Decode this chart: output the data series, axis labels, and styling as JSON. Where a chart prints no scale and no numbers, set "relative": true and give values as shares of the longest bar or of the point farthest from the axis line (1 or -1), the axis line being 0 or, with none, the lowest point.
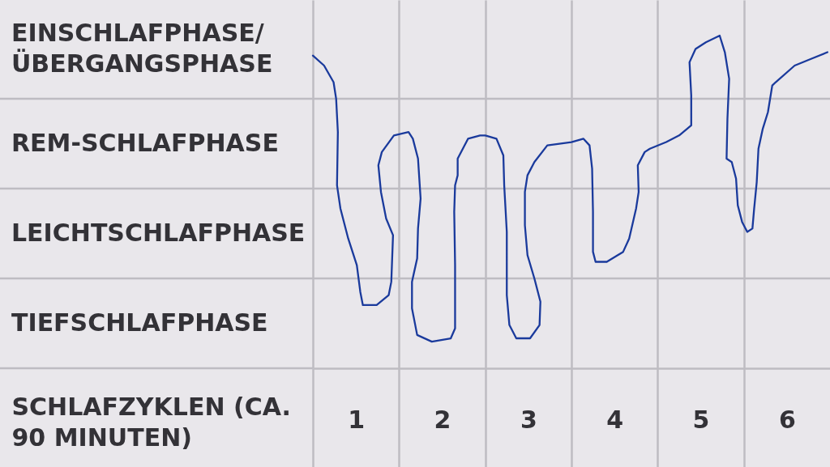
{
  "chart_data": {
    "type": "line",
    "relative": true,
    "xlabel": "SCHLAFZYKLEN (CA. 90 MINUTEN)",
    "color": "#1a3a9c",
    "line_style": "solid",
    "grid": "x",
    "xlim": [
      0,
      6
    ],
    "xticks": [
      {
        "value": 0,
        "label": null
      },
      {
        "value": 0.5,
        "label": "1"
      },
      {
        "value": 1,
        "label": null
      },
      {
        "value": 1.5,
        "label": "2"
      },
      {
        "value": 2,
        "label": null
      },
      {
        "value": 2.5,
        "label": "3"
      },
      {
        "value": 3,
        "label": null
      },
      {
        "value": 3.5,
        "label": "4"
      },
      {
        "value": 4,
        "label": null
      },
      {
        "value": 4.5,
        "label": "5"
      },
      {
        "value": 5,
        "label": null
      },
      {
        "value": 5.5,
        "label": "6"
      }
    ],
    "ref_lines": [
      {
        "axis": "y",
        "value": 0.27,
        "color": "#bebcc2"
      },
      {
        "axis": "y",
        "value": 0.54,
        "color": "#bebcc2"
      },
      {
        "axis": "y",
        "value": 0.81,
        "color": "#bebcc2"
      }
    ],
    "annotations": [
      "EINSCHLAFPHASE/ÜBERGANGSPHASE",
      "REM-SCHLAFPHASE",
      "LEICHTSCHLAFPHASE",
      "TIEFSCHLAFPHASE"
    ],
    "x": [
      0,
      0.13,
      0.24,
      0.27,
      0.29,
      0.28,
      0.32,
      0.41,
      0.51,
      0.55,
      0.58,
      0.74,
      0.88,
      0.91,
      0.93,
      0.85,
      0.79,
      0.76,
      0.8,
      0.94,
      1.11,
      1.16,
      1.22,
      1.25,
      1.22,
      1.21,
      1.15,
      1.15,
      1.21,
      1.38,
      1.6,
      1.65,
      1.65,
      1.64,
      1.65,
      1.68,
      1.68,
      1.8,
      1.94,
      2.0,
      2.13,
      2.21,
      2.22,
      2.25,
      2.25,
      2.28,
      2.36,
      2.52,
      2.63,
      2.64,
      2.57,
      2.49,
      2.46,
      2.46,
      2.49,
      2.57,
      2.72,
      3.0,
      3.14,
      3.21,
      3.24,
      3.25,
      3.25,
      3.28,
      3.41,
      3.6,
      3.67,
      3.75,
      3.78,
      3.77,
      3.85,
      3.91,
      4.1,
      4.25,
      4.39,
      4.39,
      4.37,
      4.44,
      4.56,
      4.72,
      4.78,
      4.83,
      4.81,
      4.8,
      4.86,
      4.91,
      4.93,
      4.98,
      5.04,
      5.1,
      5.12,
      5.15,
      5.17,
      5.22,
      5.28,
      5.33,
      5.37,
      5.59,
      5.78,
      5.97
    ],
    "values": [
      0.94,
      0.91,
      0.86,
      0.81,
      0.71,
      0.55,
      0.48,
      0.39,
      0.31,
      0.23,
      0.19,
      0.19,
      0.22,
      0.26,
      0.4,
      0.45,
      0.53,
      0.61,
      0.65,
      0.7,
      0.71,
      0.69,
      0.63,
      0.51,
      0.42,
      0.33,
      0.26,
      0.18,
      0.1,
      0.08,
      0.09,
      0.12,
      0.31,
      0.47,
      0.55,
      0.58,
      0.63,
      0.69,
      0.7,
      0.7,
      0.69,
      0.64,
      0.55,
      0.41,
      0.22,
      0.13,
      0.09,
      0.09,
      0.13,
      0.2,
      0.27,
      0.34,
      0.43,
      0.53,
      0.58,
      0.62,
      0.67,
      0.68,
      0.69,
      0.67,
      0.6,
      0.47,
      0.35,
      0.32,
      0.32,
      0.35,
      0.39,
      0.48,
      0.53,
      0.61,
      0.65,
      0.66,
      0.68,
      0.7,
      0.73,
      0.82,
      0.92,
      0.96,
      0.98,
      1,
      0.95,
      0.87,
      0.75,
      0.63,
      0.62,
      0.57,
      0.49,
      0.44,
      0.41,
      0.42,
      0.48,
      0.56,
      0.66,
      0.72,
      0.77,
      0.85,
      0.86,
      0.91,
      0.93,
      0.95
    ]
  }
}
